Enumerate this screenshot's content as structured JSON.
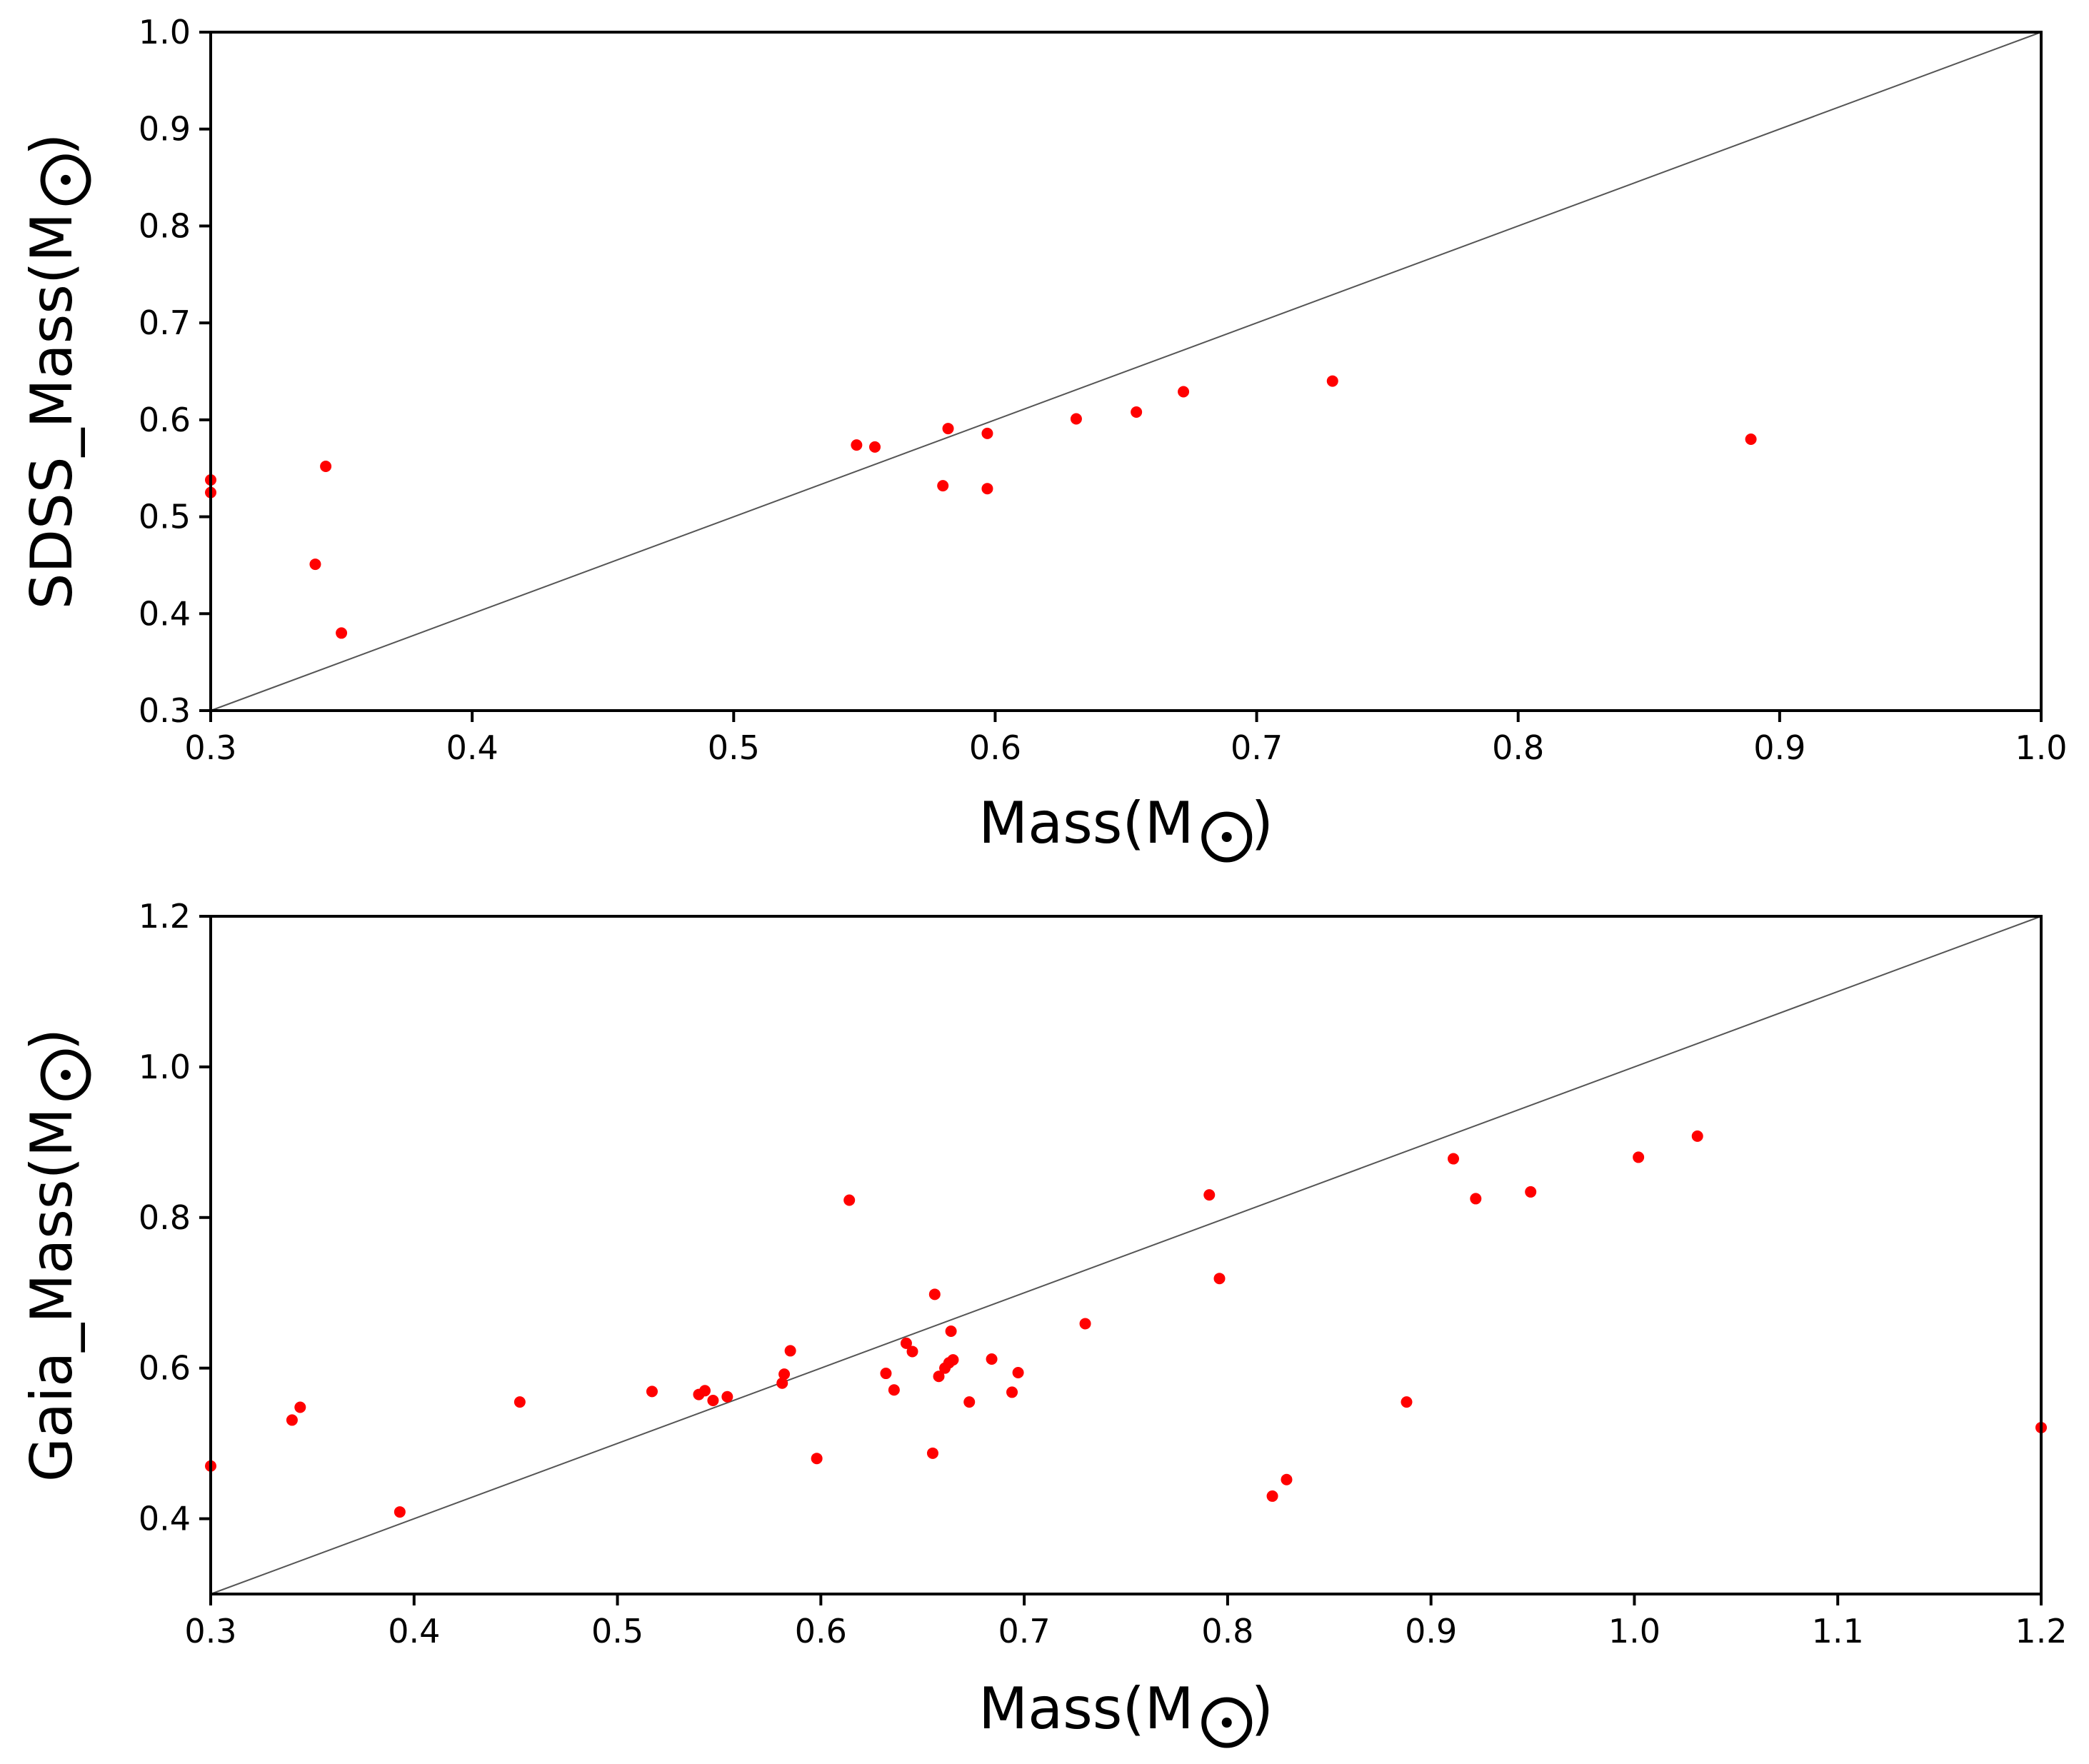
{
  "chart_data": [
    {
      "type": "scatter",
      "title": "",
      "xlabel": "Mass(M",
      "ylabel": "SDSS_Mass(M",
      "label_suffix": ")",
      "solar_symbol": "sun-symbol",
      "xlim": [
        0.3,
        1.0
      ],
      "ylim": [
        0.3,
        1.0
      ],
      "xticks": [
        "0.3",
        "0.4",
        "0.5",
        "0.6",
        "0.7",
        "0.8",
        "0.9",
        "1.0"
      ],
      "yticks": [
        "0.3",
        "0.4",
        "0.5",
        "0.6",
        "0.7",
        "0.8",
        "0.9",
        "1.0"
      ],
      "reference_line": {
        "from": [
          0.3,
          0.3
        ],
        "to": [
          1.0,
          1.0
        ],
        "color": "#555555"
      },
      "marker_color": "#ff0000",
      "points": [
        [
          0.3,
          0.538
        ],
        [
          0.3,
          0.525
        ],
        [
          0.34,
          0.451
        ],
        [
          0.344,
          0.552
        ],
        [
          0.35,
          0.38
        ],
        [
          0.547,
          0.574
        ],
        [
          0.554,
          0.572
        ],
        [
          0.58,
          0.532
        ],
        [
          0.582,
          0.591
        ],
        [
          0.597,
          0.586
        ],
        [
          0.597,
          0.529
        ],
        [
          0.631,
          0.601
        ],
        [
          0.654,
          0.608
        ],
        [
          0.672,
          0.629
        ],
        [
          0.729,
          0.64
        ],
        [
          0.889,
          0.58
        ]
      ]
    },
    {
      "type": "scatter",
      "title": "",
      "xlabel": "Mass(M",
      "ylabel": "Gaia_Mass(M",
      "label_suffix": ")",
      "solar_symbol": "sun-symbol",
      "xlim": [
        0.3,
        1.2
      ],
      "ylim": [
        0.3,
        1.2
      ],
      "xticks": [
        "0.3",
        "0.4",
        "0.5",
        "0.6",
        "0.7",
        "0.8",
        "0.9",
        "1.0",
        "1.1",
        "1.2"
      ],
      "yticks": [
        "0.4",
        "0.6",
        "0.8",
        "1.0",
        "1.2"
      ],
      "reference_line": {
        "from": [
          0.3,
          0.3
        ],
        "to": [
          1.2,
          1.2
        ],
        "color": "#555555"
      },
      "marker_color": "#ff0000",
      "points": [
        [
          0.3,
          0.47
        ],
        [
          0.34,
          0.531
        ],
        [
          0.344,
          0.548
        ],
        [
          0.393,
          0.409
        ],
        [
          0.452,
          0.555
        ],
        [
          0.517,
          0.569
        ],
        [
          0.54,
          0.565
        ],
        [
          0.543,
          0.57
        ],
        [
          0.547,
          0.557
        ],
        [
          0.554,
          0.562
        ],
        [
          0.581,
          0.58
        ],
        [
          0.582,
          0.592
        ],
        [
          0.585,
          0.623
        ],
        [
          0.598,
          0.48
        ],
        [
          0.614,
          0.823
        ],
        [
          0.632,
          0.593
        ],
        [
          0.636,
          0.571
        ],
        [
          0.642,
          0.633
        ],
        [
          0.645,
          0.622
        ],
        [
          0.655,
          0.487
        ],
        [
          0.656,
          0.698
        ],
        [
          0.658,
          0.589
        ],
        [
          0.661,
          0.6
        ],
        [
          0.663,
          0.607
        ],
        [
          0.664,
          0.649
        ],
        [
          0.665,
          0.611
        ],
        [
          0.673,
          0.555
        ],
        [
          0.684,
          0.612
        ],
        [
          0.694,
          0.568
        ],
        [
          0.697,
          0.594
        ],
        [
          0.73,
          0.659
        ],
        [
          0.791,
          0.83
        ],
        [
          0.796,
          0.719
        ],
        [
          0.822,
          0.43
        ],
        [
          0.829,
          0.452
        ],
        [
          0.888,
          0.555
        ],
        [
          0.911,
          0.878
        ],
        [
          0.922,
          0.825
        ],
        [
          0.949,
          0.834
        ],
        [
          1.002,
          0.88
        ],
        [
          1.031,
          0.908
        ],
        [
          1.2,
          0.521
        ]
      ]
    }
  ]
}
